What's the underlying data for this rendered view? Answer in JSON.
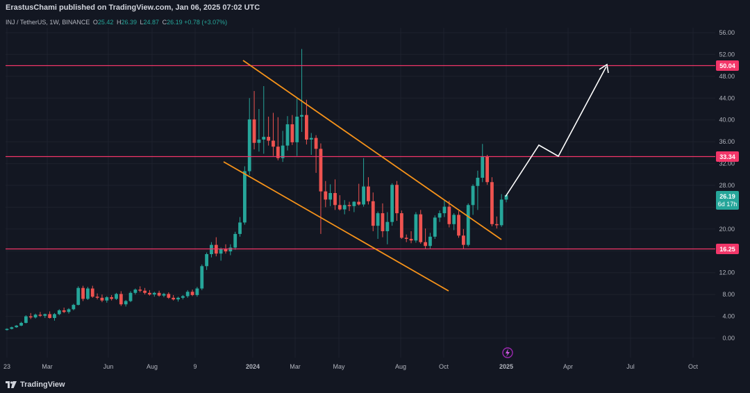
{
  "header": {
    "published": "ErastusChami published on TradingView.com, Jan 06, 2025 07:02 UTC"
  },
  "legend": {
    "symbol": "INJ / TetherUS, 1W, BINANCE",
    "open_label": "O",
    "open": "25.42",
    "high_label": "H",
    "high": "26.39",
    "low_label": "L",
    "low": "24.87",
    "close_label": "C",
    "close": "26.19",
    "change": "+0.78 (+3.07%)"
  },
  "footer": {
    "brand": "TradingView"
  },
  "colors": {
    "background": "#131722",
    "up": "#26a69a",
    "down": "#ef5350",
    "level": "#f23669",
    "channel": "#f7931a",
    "projection": "#ffffff",
    "price_tag": "#26a69a"
  },
  "chart_data": {
    "type": "candlestick",
    "y_ticks": [
      "56.00",
      "52.00",
      "48.00",
      "44.00",
      "40.00",
      "36.00",
      "32.00",
      "28.00",
      "24.00",
      "20.00",
      "16.00",
      "12.00",
      "8.00",
      "4.00",
      "0.00"
    ],
    "ylim": [
      -2,
      58
    ],
    "x_ticks": [
      "23",
      "Mar",
      "Jun",
      "Aug",
      "9",
      "2024",
      "Mar",
      "May",
      "Aug",
      "Oct",
      "2025",
      "Apr",
      "Jul",
      "Oct"
    ],
    "horizontal_levels": [
      {
        "value": 50.04,
        "label": "50.04"
      },
      {
        "value": 33.34,
        "label": "33.34"
      },
      {
        "value": 16.25,
        "label": "16.25"
      }
    ],
    "current_price": {
      "value": 26.19,
      "label": "26.19",
      "countdown": "6d 17h"
    },
    "candles": [
      [
        1.5,
        1.8,
        1.4,
        1.7
      ],
      [
        1.7,
        2.1,
        1.6,
        2.0
      ],
      [
        2.0,
        2.4,
        1.9,
        2.3
      ],
      [
        2.3,
        3.0,
        2.2,
        2.8
      ],
      [
        2.8,
        4.2,
        2.7,
        4.0
      ],
      [
        4.0,
        4.6,
        3.5,
        3.8
      ],
      [
        3.8,
        4.5,
        3.6,
        4.3
      ],
      [
        4.3,
        4.8,
        3.9,
        4.1
      ],
      [
        4.1,
        4.5,
        3.7,
        4.4
      ],
      [
        4.4,
        4.9,
        3.6,
        3.7
      ],
      [
        3.7,
        4.6,
        3.2,
        4.4
      ],
      [
        4.4,
        5.3,
        4.2,
        5.1
      ],
      [
        5.1,
        5.6,
        4.6,
        4.8
      ],
      [
        4.8,
        5.5,
        4.5,
        5.3
      ],
      [
        5.3,
        6.3,
        5.1,
        6.1
      ],
      [
        6.1,
        9.5,
        6.0,
        9.2
      ],
      [
        9.2,
        9.6,
        6.8,
        7.2
      ],
      [
        7.2,
        9.4,
        7.0,
        9.1
      ],
      [
        9.1,
        9.6,
        7.4,
        7.6
      ],
      [
        7.6,
        8.2,
        7.1,
        7.4
      ],
      [
        7.4,
        8.0,
        6.6,
        6.9
      ],
      [
        6.9,
        7.7,
        6.5,
        7.5
      ],
      [
        7.5,
        7.9,
        6.9,
        7.2
      ],
      [
        7.2,
        8.3,
        7.0,
        8.1
      ],
      [
        8.1,
        8.6,
        5.9,
        6.2
      ],
      [
        6.2,
        7.0,
        5.8,
        6.8
      ],
      [
        6.8,
        8.6,
        6.6,
        8.3
      ],
      [
        8.3,
        9.1,
        8.0,
        8.9
      ],
      [
        8.9,
        9.5,
        8.4,
        8.7
      ],
      [
        8.7,
        9.2,
        8.0,
        8.3
      ],
      [
        8.3,
        8.8,
        7.8,
        8.0
      ],
      [
        8.0,
        8.5,
        7.6,
        8.3
      ],
      [
        8.3,
        8.7,
        7.6,
        7.8
      ],
      [
        7.8,
        8.3,
        7.5,
        8.1
      ],
      [
        8.1,
        8.4,
        7.2,
        7.4
      ],
      [
        7.4,
        7.9,
        6.9,
        7.1
      ],
      [
        7.1,
        7.6,
        6.7,
        7.4
      ],
      [
        7.4,
        7.9,
        7.1,
        7.7
      ],
      [
        7.7,
        8.8,
        7.4,
        8.5
      ],
      [
        8.5,
        8.9,
        7.7,
        7.9
      ],
      [
        7.9,
        9.4,
        7.6,
        9.1
      ],
      [
        9.1,
        13.5,
        8.8,
        13.2
      ],
      [
        13.2,
        15.7,
        12.5,
        15.4
      ],
      [
        15.4,
        17.6,
        14.8,
        17.1
      ],
      [
        17.1,
        18.5,
        15.0,
        15.5
      ],
      [
        15.5,
        16.6,
        14.2,
        16.3
      ],
      [
        16.3,
        17.2,
        15.5,
        15.9
      ],
      [
        15.9,
        17.2,
        15.2,
        16.6
      ],
      [
        16.6,
        19.5,
        16.2,
        19.1
      ],
      [
        19.1,
        22.2,
        18.6,
        21.2
      ],
      [
        21.2,
        31.5,
        20.8,
        30.6
      ],
      [
        30.6,
        44.0,
        29.9,
        40.1
      ],
      [
        40.1,
        45.3,
        34.6,
        35.8
      ],
      [
        35.8,
        42.0,
        34.2,
        36.4
      ],
      [
        36.4,
        46.2,
        33.8,
        36.9
      ],
      [
        36.9,
        40.6,
        35.3,
        36.2
      ],
      [
        36.2,
        41.3,
        33.4,
        35.1
      ],
      [
        35.1,
        40.5,
        32.6,
        33.0
      ],
      [
        33.0,
        38.0,
        32.3,
        35.3
      ],
      [
        35.3,
        40.7,
        34.4,
        39.2
      ],
      [
        39.2,
        40.9,
        35.4,
        35.9
      ],
      [
        35.9,
        44.0,
        33.4,
        40.6
      ],
      [
        40.6,
        53.0,
        37.8,
        40.9
      ],
      [
        40.9,
        43.7,
        35.5,
        36.4
      ],
      [
        36.4,
        37.6,
        33.6,
        36.7
      ],
      [
        36.7,
        37.2,
        30.3,
        34.7
      ],
      [
        34.7,
        35.7,
        19.1,
        26.9
      ],
      [
        26.9,
        28.8,
        24.0,
        25.4
      ],
      [
        25.4,
        28.2,
        24.2,
        26.6
      ],
      [
        26.6,
        29.1,
        23.5,
        24.4
      ],
      [
        24.4,
        26.2,
        23.4,
        23.6
      ],
      [
        23.6,
        25.3,
        22.7,
        24.4
      ],
      [
        24.4,
        25.0,
        23.3,
        24.2
      ],
      [
        24.2,
        25.1,
        23.1,
        25.0
      ],
      [
        25.0,
        28.3,
        24.3,
        24.5
      ],
      [
        24.5,
        33.0,
        24.1,
        27.8
      ],
      [
        27.8,
        29.5,
        24.5,
        25.1
      ],
      [
        25.1,
        26.7,
        19.6,
        20.6
      ],
      [
        20.6,
        23.2,
        18.2,
        22.9
      ],
      [
        22.9,
        24.7,
        18.5,
        19.6
      ],
      [
        19.6,
        23.1,
        17.2,
        21.3
      ],
      [
        21.3,
        28.4,
        20.6,
        28.1
      ],
      [
        28.1,
        28.8,
        21.5,
        22.9
      ],
      [
        22.9,
        23.4,
        18.2,
        18.4
      ],
      [
        18.4,
        19.0,
        17.6,
        18.2
      ],
      [
        18.2,
        19.6,
        17.4,
        17.9
      ],
      [
        17.9,
        23.1,
        17.5,
        22.7
      ],
      [
        22.7,
        23.5,
        17.3,
        17.6
      ],
      [
        17.6,
        20.1,
        16.3,
        16.9
      ],
      [
        16.9,
        19.3,
        16.4,
        18.6
      ],
      [
        18.6,
        22.5,
        18.2,
        22.1
      ],
      [
        22.1,
        23.4,
        21.3,
        22.9
      ],
      [
        22.9,
        25.4,
        22.2,
        24.1
      ],
      [
        24.1,
        25.2,
        20.3,
        20.9
      ],
      [
        20.9,
        22.9,
        19.8,
        22.6
      ],
      [
        22.6,
        23.3,
        18.4,
        18.8
      ],
      [
        18.8,
        20.0,
        16.3,
        17.1
      ],
      [
        17.1,
        24.7,
        16.8,
        24.4
      ],
      [
        24.4,
        28.2,
        22.6,
        27.9
      ],
      [
        27.9,
        30.7,
        23.5,
        29.4
      ],
      [
        29.4,
        35.6,
        28.6,
        33.3
      ],
      [
        33.3,
        33.6,
        28.1,
        28.6
      ],
      [
        28.6,
        29.5,
        20.5,
        20.9
      ],
      [
        20.9,
        22.3,
        20.1,
        20.7
      ],
      [
        20.7,
        26.4,
        20.4,
        25.4
      ],
      [
        25.4,
        26.4,
        24.9,
        26.2
      ]
    ]
  }
}
